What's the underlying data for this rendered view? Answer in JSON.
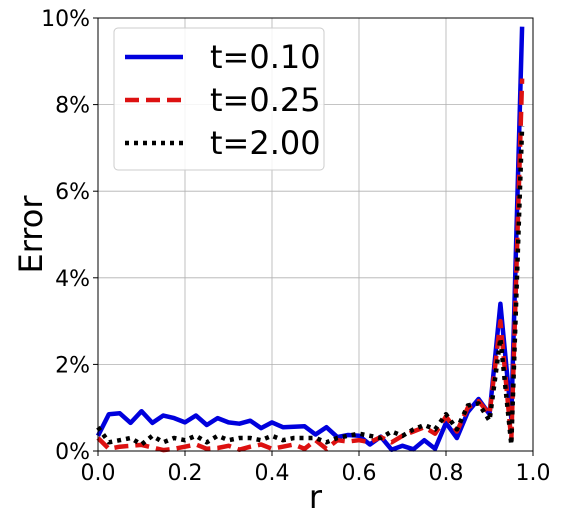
{
  "chart_data": {
    "type": "line",
    "xlabel": "r",
    "ylabel": "Error",
    "xlim": [
      0.0,
      1.0
    ],
    "ylim": [
      0,
      10
    ],
    "x_ticks": [
      "0.0",
      "0.2",
      "0.4",
      "0.6",
      "0.8",
      "1.0"
    ],
    "y_ticks": [
      "0%",
      "2%",
      "4%",
      "6%",
      "8%",
      "10%"
    ],
    "grid": true,
    "legend_position": "top-left",
    "x": [
      0.0,
      0.025,
      0.05,
      0.075,
      0.1,
      0.125,
      0.15,
      0.175,
      0.2,
      0.225,
      0.25,
      0.275,
      0.3,
      0.325,
      0.35,
      0.375,
      0.4,
      0.425,
      0.45,
      0.475,
      0.5,
      0.525,
      0.55,
      0.575,
      0.6,
      0.625,
      0.65,
      0.675,
      0.7,
      0.725,
      0.75,
      0.775,
      0.8,
      0.825,
      0.85,
      0.875,
      0.9,
      0.925,
      0.95,
      0.975
    ],
    "series": [
      {
        "name": "t=0.10",
        "color": "#0000dd",
        "dash": "solid",
        "values": [
          0.35,
          0.85,
          0.87,
          0.65,
          0.92,
          0.65,
          0.82,
          0.76,
          0.66,
          0.82,
          0.6,
          0.76,
          0.66,
          0.63,
          0.7,
          0.53,
          0.66,
          0.55,
          0.56,
          0.57,
          0.38,
          0.55,
          0.32,
          0.37,
          0.35,
          0.15,
          0.33,
          0.03,
          0.12,
          0.04,
          0.25,
          0.05,
          0.65,
          0.3,
          0.9,
          1.2,
          0.85,
          3.4,
          0.75,
          9.8
        ]
      },
      {
        "name": "t=0.25",
        "color": "#dd1111",
        "dash": "dashed",
        "values": [
          0.3,
          0.05,
          0.1,
          0.12,
          0.14,
          0.08,
          0.02,
          0.05,
          0.1,
          0.15,
          0.05,
          0.07,
          0.12,
          0.03,
          0.1,
          0.15,
          0.05,
          0.1,
          0.15,
          0.05,
          0.25,
          0.05,
          0.25,
          0.22,
          0.25,
          0.2,
          0.32,
          0.2,
          0.35,
          0.45,
          0.55,
          0.4,
          0.8,
          0.45,
          1.0,
          1.15,
          0.85,
          3.0,
          0.25,
          8.6
        ]
      },
      {
        "name": "t=2.00",
        "color": "#000000",
        "dash": "dotted",
        "values": [
          0.55,
          0.2,
          0.25,
          0.3,
          0.15,
          0.35,
          0.2,
          0.3,
          0.25,
          0.35,
          0.2,
          0.35,
          0.25,
          0.3,
          0.3,
          0.25,
          0.35,
          0.25,
          0.3,
          0.3,
          0.3,
          0.2,
          0.3,
          0.35,
          0.4,
          0.35,
          0.3,
          0.45,
          0.35,
          0.5,
          0.6,
          0.5,
          0.85,
          0.5,
          1.05,
          1.1,
          0.7,
          2.6,
          0.15,
          7.5
        ]
      }
    ]
  }
}
